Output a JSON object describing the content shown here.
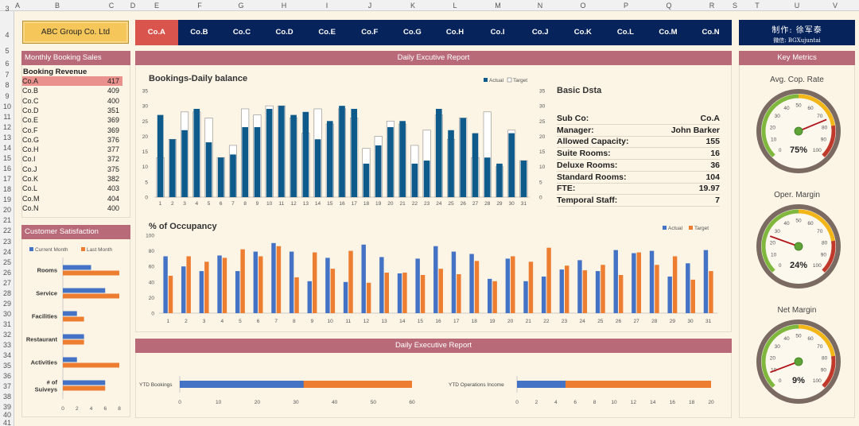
{
  "header": {
    "columns": [
      "A",
      "B",
      "C",
      "D",
      "E",
      "F",
      "G",
      "H",
      "I",
      "J",
      "K",
      "L",
      "M",
      "N",
      "O",
      "P",
      "Q",
      "R",
      "S",
      "T",
      "U",
      "V"
    ],
    "rows": [
      "3",
      "4",
      "5",
      "6",
      "7",
      "8",
      "9",
      "10",
      "11",
      "12",
      "13",
      "14",
      "15",
      "16",
      "17",
      "18",
      "19",
      "20",
      "21",
      "22",
      "23",
      "24",
      "25",
      "26",
      "27",
      "28",
      "29",
      "30",
      "31",
      "32",
      "33",
      "34",
      "35",
      "36",
      "37",
      "38",
      "39",
      "40",
      "41"
    ]
  },
  "company_button": "ABC Group Co. Ltd",
  "author": {
    "line1": "制作: 徐军泰",
    "line2": "微信: BGXujuntai"
  },
  "companies": [
    "Co.A",
    "Co.B",
    "Co.C",
    "Co.D",
    "Co.E",
    "Co.F",
    "Co.G",
    "Co.H",
    "Co.I",
    "Co.J",
    "Co.K",
    "Co.L",
    "Co.M",
    "Co.N"
  ],
  "selected_company": "Co.A",
  "sections": {
    "monthly_sales": "Monthly Booking Sales",
    "booking_revenue": "Booking Revenue",
    "customer_satisfaction": "Customer Satisfaction",
    "daily_report_top": "Daily Excutive Report",
    "daily_report_bottom": "Daily Executive Report",
    "key_metrics": "Key Metrics"
  },
  "booking_revenue": [
    {
      "name": "Co.A",
      "value": "417"
    },
    {
      "name": "Co.B",
      "value": "409"
    },
    {
      "name": "Co.C",
      "value": "400"
    },
    {
      "name": "Co.D",
      "value": "351"
    },
    {
      "name": "Co.E",
      "value": "369"
    },
    {
      "name": "Co.F",
      "value": "369"
    },
    {
      "name": "Co.G",
      "value": "376"
    },
    {
      "name": "Co.H",
      "value": "377"
    },
    {
      "name": "Co.I",
      "value": "372"
    },
    {
      "name": "Co.J",
      "value": "375"
    },
    {
      "name": "Co.K",
      "value": "382"
    },
    {
      "name": "Co.L",
      "value": "403"
    },
    {
      "name": "Co.M",
      "value": "404"
    },
    {
      "name": "Co.N",
      "value": "400"
    }
  ],
  "basic_data": {
    "title": "Basic Dsta",
    "rows": [
      {
        "label": "Sub Co:",
        "value": "Co.A"
      },
      {
        "label": "Manager:",
        "value": "John Barker"
      },
      {
        "label": "Allowed Capacity:",
        "value": "155"
      },
      {
        "label": "Suite Rooms:",
        "value": "16"
      },
      {
        "label": "Deluxe Rooms:",
        "value": "36"
      },
      {
        "label": "Standard Rooms:",
        "value": "104"
      },
      {
        "label": "FTE:",
        "value": "19.97"
      },
      {
        "label": "Temporal Staff:",
        "value": "7"
      }
    ]
  },
  "gauges": [
    {
      "title": "Avg. Cop. Rate",
      "value": 75,
      "label": "75%"
    },
    {
      "title": "Oper. Margin",
      "value": 24,
      "label": "24%"
    },
    {
      "title": "Net Margin",
      "value": 9,
      "label": "9%"
    }
  ],
  "gauge_ticks": [
    "0",
    "10",
    "20",
    "30",
    "40",
    "50",
    "60",
    "70",
    "80",
    "90",
    "100"
  ],
  "colors": {
    "actual": "#0e5a8a",
    "target_fill": "#ffffff",
    "occ_actual": "#4472c4",
    "occ_target": "#ed7d31",
    "nav": "#07235b",
    "header_bar": "#b86a78",
    "selected": "#e8918d",
    "active_tab": "#d9544d"
  },
  "chart_data": [
    {
      "type": "bar",
      "title": "Bookings-Daily balance",
      "categories": [
        "1",
        "2",
        "3",
        "4",
        "5",
        "6",
        "7",
        "8",
        "9",
        "10",
        "11",
        "12",
        "13",
        "14",
        "15",
        "16",
        "17",
        "18",
        "19",
        "20",
        "21",
        "22",
        "23",
        "24",
        "25",
        "26",
        "27",
        "28",
        "29",
        "30",
        "31"
      ],
      "series": [
        {
          "name": "Actual",
          "values": [
            27,
            19,
            22,
            29,
            18,
            13,
            14,
            23,
            23,
            29,
            30,
            27,
            28,
            19,
            25,
            30,
            29,
            11,
            17,
            23,
            25,
            11,
            12,
            29,
            22,
            26,
            21,
            13,
            11,
            21,
            12
          ]
        },
        {
          "name": "Target",
          "values": [
            13,
            19,
            28,
            28,
            26,
            13,
            17,
            29,
            27,
            30,
            30,
            26,
            21,
            29,
            24,
            29,
            26,
            16,
            20,
            25,
            24,
            17,
            22,
            27,
            19,
            26,
            13,
            28,
            10,
            22,
            12
          ]
        }
      ],
      "ylim": [
        0,
        35
      ],
      "yticks": [
        "0",
        "5",
        "10",
        "15",
        "20",
        "25",
        "30",
        "35"
      ],
      "legend": "top-right"
    },
    {
      "type": "bar",
      "title": "% of Occupancy",
      "categories": [
        "1",
        "2",
        "3",
        "4",
        "5",
        "6",
        "7",
        "8",
        "9",
        "10",
        "11",
        "12",
        "13",
        "14",
        "15",
        "16",
        "17",
        "18",
        "19",
        "20",
        "21",
        "22",
        "23",
        "24",
        "25",
        "26",
        "27",
        "28",
        "29",
        "30",
        "31"
      ],
      "series": [
        {
          "name": "Actual",
          "values": [
            73,
            60,
            54,
            74,
            54,
            79,
            90,
            79,
            41,
            71,
            40,
            88,
            72,
            51,
            70,
            86,
            79,
            76,
            44,
            70,
            41,
            47,
            56,
            68,
            54,
            81,
            77,
            80,
            47,
            64,
            81
          ]
        },
        {
          "name": "Target",
          "values": [
            48,
            73,
            66,
            71,
            82,
            73,
            86,
            46,
            78,
            57,
            80,
            39,
            52,
            52,
            49,
            57,
            50,
            67,
            41,
            73,
            66,
            84,
            61,
            55,
            62,
            49,
            78,
            62,
            73,
            43,
            54
          ]
        }
      ],
      "ylim": [
        0,
        100
      ],
      "yticks": [
        "0",
        "20",
        "40",
        "60",
        "80",
        "100"
      ],
      "legend": "top-right"
    },
    {
      "type": "bar",
      "title": "Customer Satisfaction",
      "categories": [
        "Rooms",
        "Service",
        "Facilities",
        "Restaurant",
        "Activities",
        "# of\nSuiveys"
      ],
      "series": [
        {
          "name": "Current Month",
          "values": [
            4,
            6,
            2,
            3,
            2,
            6
          ]
        },
        {
          "name": "Last Month",
          "values": [
            8,
            8,
            3,
            3,
            8,
            6
          ]
        }
      ],
      "xlim": [
        0,
        8
      ],
      "xticks": [
        "0",
        "2",
        "4",
        "6",
        "8"
      ]
    },
    {
      "type": "bar",
      "title": "YTD Bookings",
      "series": [
        {
          "name": "Actual",
          "values": [
            32
          ]
        },
        {
          "name": "Target",
          "values": [
            60
          ]
        }
      ],
      "xlim": [
        0,
        60
      ],
      "xticks": [
        "0",
        "10",
        "20",
        "30",
        "40",
        "50",
        "60"
      ]
    },
    {
      "type": "bar",
      "title": "YTD Operations Income",
      "series": [
        {
          "name": "Actual",
          "values": [
            5
          ]
        },
        {
          "name": "Target",
          "values": [
            20
          ]
        }
      ],
      "xlim": [
        0,
        20
      ],
      "xticks": [
        "0",
        "2",
        "4",
        "6",
        "8",
        "10",
        "12",
        "14",
        "16",
        "18",
        "20"
      ]
    }
  ]
}
